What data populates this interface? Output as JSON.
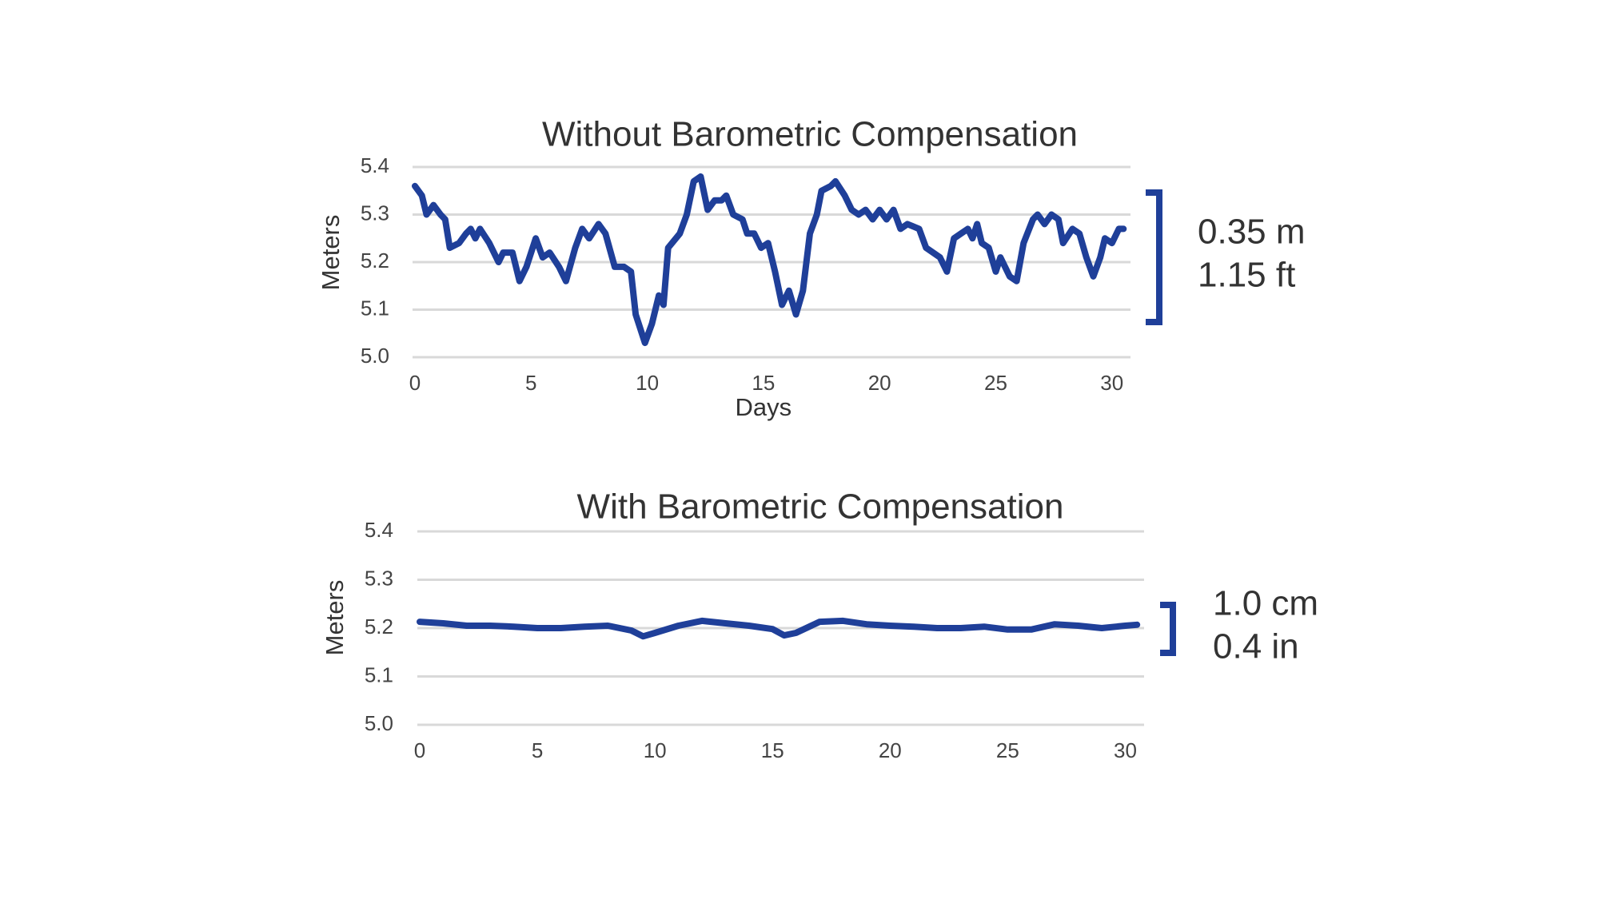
{
  "chart_data": [
    {
      "type": "line",
      "title": "Without Barometric Compensation",
      "xlabel": "Days",
      "ylabel": "Meters",
      "annotations": [
        "0.35 m",
        "1.15 ft"
      ],
      "color": "#1f3f99",
      "grid": true,
      "xlim": [
        0,
        30.8
      ],
      "ylim": [
        5.0,
        5.4
      ],
      "xticks": [
        0,
        5,
        10,
        15,
        20,
        25,
        30
      ],
      "yticks": [
        {
          "value": 5.0,
          "label": "5.0"
        },
        5.1,
        5.2,
        5.3,
        5.4
      ],
      "x": [
        0,
        0.3,
        0.5,
        0.8,
        1.1,
        1.3,
        1.5,
        1.9,
        2.2,
        2.4,
        2.6,
        2.8,
        3.2,
        3.4,
        3.6,
        3.8,
        4.2,
        4.5,
        4.8,
        5.2,
        5.5,
        5.8,
        6.2,
        6.5,
        6.9,
        7.2,
        7.5,
        7.9,
        8.2,
        8.6,
        9.0,
        9.3,
        9.5,
        9.9,
        10.2,
        10.5,
        10.7,
        10.9,
        11.4,
        11.7,
        12.0,
        12.3,
        12.6,
        12.9,
        13.2,
        13.4,
        13.7,
        14.1,
        14.3,
        14.6,
        14.9,
        15.2,
        15.5,
        15.8,
        16.1,
        16.4,
        16.7,
        17.0,
        17.3,
        17.5,
        17.9,
        18.1,
        18.5,
        18.8,
        19.1,
        19.4,
        19.7,
        20.0,
        20.3,
        20.6,
        20.9,
        21.2,
        21.7,
        22.0,
        22.3,
        22.6,
        22.9,
        23.2,
        23.5,
        23.8,
        24.0,
        24.2,
        24.4,
        24.7,
        25.0,
        25.2,
        25.6,
        25.9,
        26.2,
        26.6,
        26.8,
        27.1,
        27.4,
        27.7,
        27.9,
        28.3,
        28.6,
        28.9,
        29.2,
        29.5,
        29.7,
        30.0,
        30.3,
        30.5
      ],
      "values": [
        5.36,
        5.34,
        5.3,
        5.32,
        5.3,
        5.29,
        5.23,
        5.24,
        5.26,
        5.27,
        5.25,
        5.27,
        5.24,
        5.22,
        5.2,
        5.22,
        5.22,
        5.16,
        5.19,
        5.25,
        5.21,
        5.22,
        5.19,
        5.16,
        5.23,
        5.27,
        5.25,
        5.28,
        5.26,
        5.19,
        5.19,
        5.18,
        5.09,
        5.03,
        5.07,
        5.13,
        5.11,
        5.23,
        5.26,
        5.3,
        5.37,
        5.38,
        5.31,
        5.33,
        5.33,
        5.34,
        5.3,
        5.29,
        5.26,
        5.26,
        5.23,
        5.24,
        5.18,
        5.11,
        5.14,
        5.09,
        5.14,
        5.26,
        5.3,
        5.35,
        5.36,
        5.37,
        5.34,
        5.31,
        5.3,
        5.31,
        5.29,
        5.31,
        5.29,
        5.31,
        5.27,
        5.28,
        5.27,
        5.23,
        5.22,
        5.21,
        5.18,
        5.25,
        5.26,
        5.27,
        5.25,
        5.28,
        5.24,
        5.23,
        5.18,
        5.21,
        5.17,
        5.16,
        5.24,
        5.29,
        5.3,
        5.28,
        5.3,
        5.29,
        5.24,
        5.27,
        5.26,
        5.21,
        5.17,
        5.21,
        5.25,
        5.24,
        5.27,
        5.27
      ]
    },
    {
      "type": "line",
      "title": "With Barometric Compensation",
      "ylabel": "Meters",
      "annotations": [
        "1.0 cm",
        "0.4 in"
      ],
      "color": "#1f3f99",
      "grid": true,
      "xlim": [
        0,
        30.8
      ],
      "ylim": [
        5.0,
        5.4
      ],
      "xticks": [
        0,
        5,
        10,
        15,
        20,
        25,
        30
      ],
      "yticks": [
        {
          "value": 5.0,
          "label": "5.0"
        },
        5.1,
        5.2,
        5.3,
        5.4
      ],
      "x": [
        0,
        1,
        2,
        3,
        4,
        5,
        6,
        7,
        8,
        9,
        9.5,
        10,
        11,
        12,
        13,
        14,
        15,
        15.5,
        16,
        17,
        18,
        19,
        20,
        21,
        22,
        23,
        24,
        25,
        26,
        27,
        28,
        29,
        30,
        30.5
      ],
      "values": [
        5.213,
        5.21,
        5.205,
        5.205,
        5.203,
        5.2,
        5.2,
        5.203,
        5.205,
        5.195,
        5.183,
        5.19,
        5.205,
        5.215,
        5.21,
        5.205,
        5.198,
        5.185,
        5.19,
        5.213,
        5.215,
        5.208,
        5.205,
        5.203,
        5.2,
        5.2,
        5.203,
        5.197,
        5.197,
        5.208,
        5.205,
        5.2,
        5.205,
        5.207
      ]
    }
  ]
}
